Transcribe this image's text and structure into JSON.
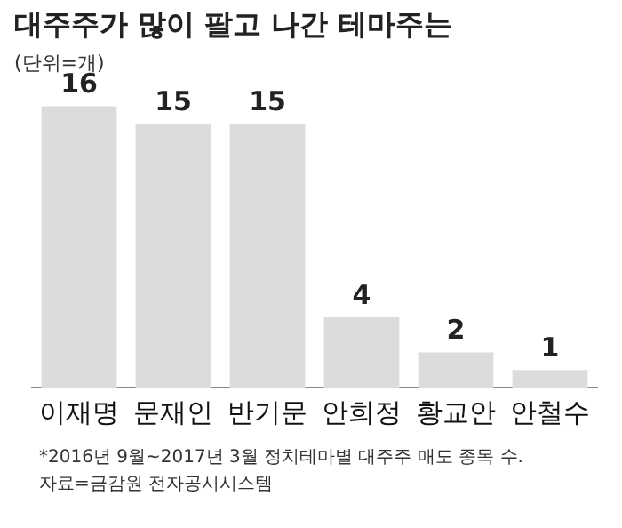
{
  "chart_data": {
    "type": "bar",
    "title": "대주주가 많이 팔고 나간 테마주는",
    "subtitle": "(단위=개)",
    "categories": [
      "이재명",
      "문재인",
      "반기문",
      "안희정",
      "황교안",
      "안철수"
    ],
    "values": [
      16,
      15,
      15,
      4,
      2,
      1
    ],
    "color": "#dcdcdc",
    "data_labels": true,
    "grid": false,
    "legend": false,
    "annotations": [
      "*2016년 9월~2017년 3월 정치테마별 대주주 매도 종목 수.",
      "자료=금감원 전자공시시스템"
    ]
  }
}
